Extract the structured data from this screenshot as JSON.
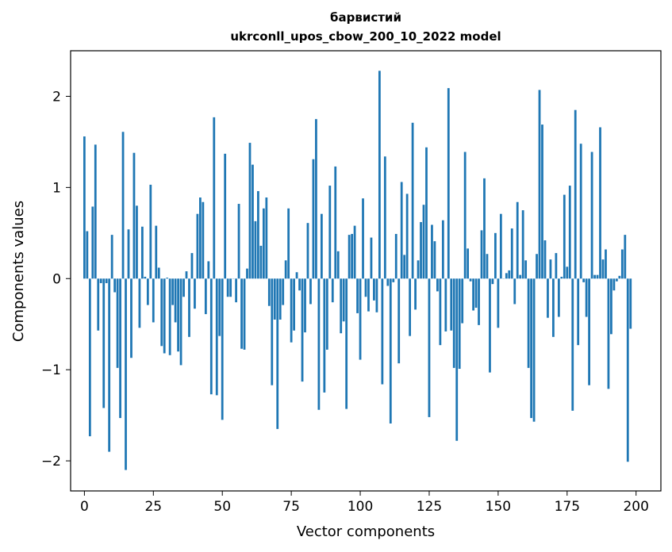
{
  "chart_data": {
    "type": "bar",
    "title": "барвистий",
    "subtitle": "ukrconll_upos_cbow_200_10_2022 model",
    "xlabel": "Vector components",
    "ylabel": "Components values",
    "xlim": [
      -5,
      209
    ],
    "ylim": [
      -2.33,
      2.5
    ],
    "xticks": [
      0,
      25,
      50,
      75,
      100,
      125,
      150,
      175,
      200
    ],
    "yticks": [
      -2,
      -1,
      0,
      1,
      2
    ],
    "ytick_labels": [
      "−2",
      "−1",
      "0",
      "1",
      "2"
    ],
    "bar_color": "#1f77b4",
    "grid": false,
    "values": [
      1.56,
      0.52,
      -1.73,
      0.79,
      1.47,
      -0.57,
      -0.05,
      -1.42,
      -0.05,
      -1.9,
      0.48,
      -0.15,
      -0.98,
      -1.53,
      1.61,
      -2.1,
      0.54,
      -0.87,
      1.38,
      0.8,
      -0.54,
      0.57,
      0.02,
      -0.29,
      1.03,
      -0.48,
      0.58,
      0.12,
      -0.74,
      -0.82,
      0.01,
      -0.84,
      -0.29,
      -0.48,
      -0.8,
      -0.95,
      -0.2,
      0.08,
      -0.64,
      0.28,
      -0.33,
      0.71,
      0.89,
      0.84,
      -0.39,
      0.19,
      -1.27,
      1.77,
      -1.28,
      -0.63,
      -1.55,
      1.37,
      -0.2,
      -0.2,
      0.0,
      -0.26,
      0.82,
      -0.77,
      -0.78,
      0.11,
      1.49,
      1.25,
      0.63,
      0.96,
      0.36,
      0.77,
      0.89,
      -0.3,
      -1.17,
      -0.45,
      -1.65,
      -0.45,
      -0.29,
      0.2,
      0.77,
      -0.7,
      -0.57,
      0.07,
      -0.13,
      -1.13,
      -0.59,
      0.61,
      -0.28,
      1.31,
      1.75,
      -1.44,
      0.71,
      -1.25,
      -0.78,
      1.02,
      -0.26,
      1.23,
      0.3,
      -0.6,
      -0.47,
      -1.43,
      0.48,
      0.49,
      0.58,
      -0.38,
      -0.89,
      0.88,
      -0.2,
      -0.36,
      0.45,
      -0.24,
      -0.37,
      2.28,
      -1.16,
      1.34,
      -0.08,
      -1.59,
      -0.04,
      0.49,
      -0.93,
      1.06,
      0.26,
      0.93,
      -0.63,
      1.71,
      -0.34,
      0.2,
      0.62,
      0.81,
      1.44,
      -1.52,
      0.59,
      0.41,
      -0.14,
      -0.73,
      0.64,
      -0.58,
      2.09,
      -0.57,
      -0.98,
      -1.78,
      -0.99,
      -0.49,
      1.39,
      0.33,
      -0.03,
      -0.35,
      -0.32,
      -0.51,
      0.53,
      1.1,
      0.27,
      -1.03,
      -0.06,
      0.5,
      -0.54,
      0.71,
      0.0,
      0.06,
      0.09,
      0.55,
      -0.28,
      0.84,
      0.04,
      0.75,
      0.2,
      -0.98,
      -1.53,
      -1.57,
      0.27,
      2.07,
      1.69,
      0.42,
      -0.43,
      0.21,
      -0.64,
      0.28,
      -0.42,
      0.02,
      0.92,
      0.13,
      1.02,
      -1.45,
      1.85,
      -0.73,
      1.48,
      -0.04,
      -0.42,
      -1.17,
      1.39,
      0.04,
      0.04,
      1.66,
      0.21,
      0.32,
      -1.21,
      -0.61,
      -0.13,
      -0.03,
      0.03,
      0.32,
      0.48,
      -2.01,
      -0.55
    ]
  }
}
